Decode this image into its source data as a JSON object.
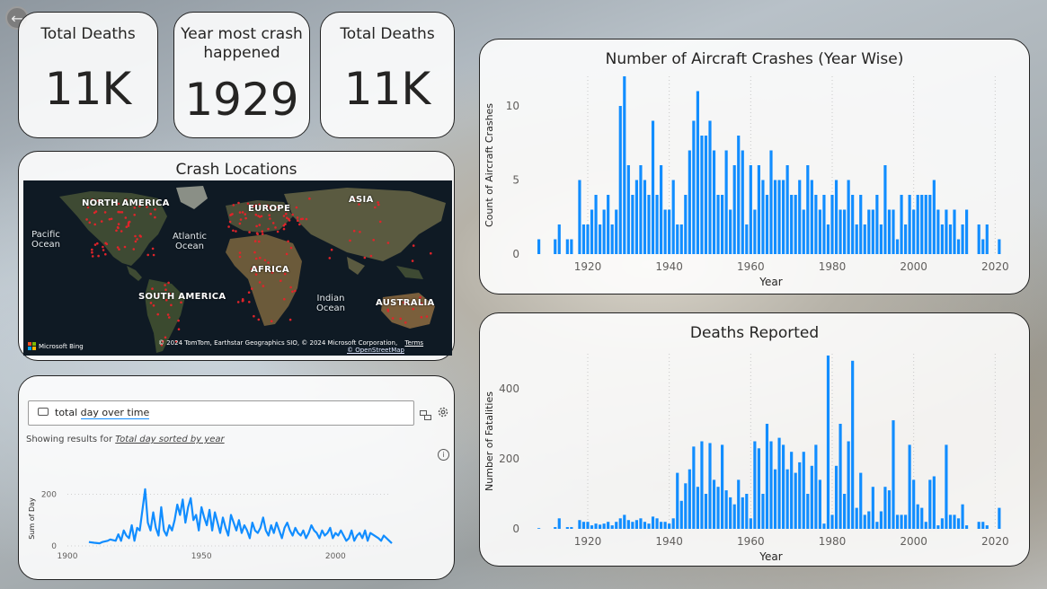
{
  "kpis": [
    {
      "title": "Total Deaths",
      "value": "11K"
    },
    {
      "title": "Year most crash happened",
      "value": "1929"
    },
    {
      "title": "Total Deaths",
      "value": "11K"
    }
  ],
  "map": {
    "title": "Crash Locations",
    "continents": [
      "NORTH AMERICA",
      "EUROPE",
      "ASIA",
      "AFRICA",
      "SOUTH AMERICA",
      "AUSTRALIA"
    ],
    "oceans": [
      "Pacific Ocean",
      "Atlantic Ocean",
      "Indian Ocean"
    ],
    "bing_logo": "Microsoft Bing",
    "attribution": "© 2024 TomTom, Earthstar Geographics SIO, © 2024 Microsoft Corporation,",
    "terms": "Terms",
    "osm": "© OpenStreetMap"
  },
  "qa": {
    "query_prefix": "total ",
    "query_day": "day",
    "query_rest": " over time",
    "results_prefix": "Showing results for ",
    "results_link": "Total day sorted by year",
    "info_icon": "info-icon",
    "swap_icon": "swap-icon",
    "settings_icon": "gear-icon"
  },
  "colors": {
    "bar": "#118DFF",
    "line": "#118DFF",
    "card_border": "#222222"
  },
  "chart_data": [
    {
      "type": "bar",
      "title": "Number of Aircraft Crashes (Year Wise)",
      "xlabel": "Year",
      "ylabel": "Count of Aircraft Crashes",
      "xticks": [
        1920,
        1940,
        1960,
        1980,
        2000,
        2020
      ],
      "yticks": [
        0,
        5,
        10
      ],
      "ylim": [
        0,
        12
      ],
      "grid": "vertical dotted",
      "x": [
        1908,
        1912,
        1913,
        1915,
        1916,
        1918,
        1919,
        1920,
        1921,
        1922,
        1923,
        1924,
        1925,
        1926,
        1927,
        1928,
        1929,
        1930,
        1931,
        1932,
        1933,
        1934,
        1935,
        1936,
        1937,
        1938,
        1939,
        1940,
        1941,
        1942,
        1943,
        1944,
        1945,
        1946,
        1947,
        1948,
        1949,
        1950,
        1951,
        1952,
        1953,
        1954,
        1955,
        1956,
        1957,
        1958,
        1959,
        1960,
        1961,
        1962,
        1963,
        1964,
        1965,
        1966,
        1967,
        1968,
        1969,
        1970,
        1971,
        1972,
        1973,
        1974,
        1975,
        1976,
        1977,
        1978,
        1979,
        1980,
        1981,
        1982,
        1983,
        1984,
        1985,
        1986,
        1987,
        1988,
        1989,
        1990,
        1991,
        1992,
        1993,
        1994,
        1995,
        1996,
        1997,
        1998,
        1999,
        2000,
        2001,
        2002,
        2003,
        2004,
        2005,
        2006,
        2007,
        2008,
        2009,
        2010,
        2011,
        2012,
        2013,
        2016,
        2017,
        2018,
        2021
      ],
      "values": [
        1,
        1,
        2,
        1,
        1,
        5,
        2,
        2,
        3,
        4,
        2,
        3,
        4,
        2,
        3,
        10,
        12,
        6,
        4,
        5,
        6,
        5,
        4,
        9,
        4,
        6,
        3,
        3,
        5,
        2,
        2,
        4,
        7,
        9,
        11,
        8,
        8,
        9,
        7,
        4,
        4,
        7,
        3,
        6,
        8,
        7,
        2,
        6,
        3,
        6,
        5,
        4,
        7,
        5,
        5,
        5,
        6,
        4,
        4,
        5,
        3,
        6,
        5,
        4,
        3,
        4,
        2,
        4,
        5,
        3,
        3,
        5,
        4,
        2,
        4,
        2,
        3,
        3,
        4,
        2,
        6,
        3,
        3,
        1,
        4,
        2,
        4,
        3,
        4,
        4,
        4,
        4,
        5,
        3,
        2,
        3,
        2,
        3,
        1,
        2,
        3,
        2,
        1,
        2,
        1
      ]
    },
    {
      "type": "bar",
      "title": "Deaths Reported",
      "xlabel": "Year",
      "ylabel": "Number of Fatalities",
      "xticks": [
        1920,
        1940,
        1960,
        1980,
        2000,
        2020
      ],
      "yticks": [
        0,
        200,
        400
      ],
      "ylim": [
        0,
        500
      ],
      "grid": "vertical dotted",
      "x": [
        1908,
        1912,
        1913,
        1915,
        1916,
        1918,
        1919,
        1920,
        1921,
        1922,
        1923,
        1924,
        1925,
        1926,
        1927,
        1928,
        1929,
        1930,
        1931,
        1932,
        1933,
        1934,
        1935,
        1936,
        1937,
        1938,
        1939,
        1940,
        1941,
        1942,
        1943,
        1944,
        1945,
        1946,
        1947,
        1948,
        1949,
        1950,
        1951,
        1952,
        1953,
        1954,
        1955,
        1956,
        1957,
        1958,
        1959,
        1960,
        1961,
        1962,
        1963,
        1964,
        1965,
        1966,
        1967,
        1968,
        1969,
        1970,
        1971,
        1972,
        1973,
        1974,
        1975,
        1976,
        1977,
        1978,
        1979,
        1980,
        1981,
        1982,
        1983,
        1984,
        1985,
        1986,
        1987,
        1988,
        1989,
        1990,
        1991,
        1992,
        1993,
        1994,
        1995,
        1996,
        1997,
        1998,
        1999,
        2000,
        2001,
        2002,
        2003,
        2004,
        2005,
        2006,
        2007,
        2008,
        2009,
        2010,
        2011,
        2012,
        2013,
        2016,
        2017,
        2018,
        2021
      ],
      "values": [
        2,
        5,
        30,
        5,
        5,
        25,
        20,
        20,
        10,
        15,
        12,
        15,
        20,
        10,
        20,
        30,
        40,
        25,
        20,
        25,
        30,
        20,
        15,
        35,
        30,
        20,
        20,
        15,
        30,
        160,
        80,
        130,
        170,
        235,
        120,
        250,
        100,
        245,
        140,
        120,
        240,
        110,
        90,
        70,
        140,
        90,
        100,
        30,
        250,
        230,
        100,
        300,
        250,
        170,
        260,
        240,
        170,
        220,
        160,
        190,
        220,
        100,
        180,
        240,
        140,
        15,
        495,
        40,
        180,
        300,
        100,
        250,
        480,
        60,
        160,
        40,
        50,
        120,
        20,
        50,
        120,
        110,
        310,
        40,
        40,
        40,
        240,
        140,
        70,
        60,
        20,
        140,
        150,
        10,
        30,
        240,
        40,
        40,
        30,
        70,
        10,
        20,
        20,
        10,
        60
      ]
    },
    {
      "type": "line",
      "title": "",
      "xlabel": "",
      "ylabel": "Sum of Day",
      "xticks": [
        1900,
        1950,
        2000
      ],
      "yticks": [
        0,
        200
      ],
      "ylim": [
        0,
        240
      ],
      "xlim": [
        1900,
        2020
      ],
      "x": [
        1908,
        1910,
        1912,
        1913,
        1915,
        1916,
        1918,
        1919,
        1920,
        1921,
        1922,
        1923,
        1924,
        1925,
        1926,
        1927,
        1928,
        1929,
        1930,
        1931,
        1932,
        1933,
        1934,
        1935,
        1936,
        1937,
        1938,
        1939,
        1940,
        1941,
        1942,
        1943,
        1944,
        1945,
        1946,
        1947,
        1948,
        1949,
        1950,
        1951,
        1952,
        1953,
        1954,
        1955,
        1956,
        1957,
        1958,
        1959,
        1960,
        1961,
        1962,
        1963,
        1964,
        1965,
        1966,
        1967,
        1968,
        1969,
        1970,
        1971,
        1972,
        1973,
        1974,
        1975,
        1976,
        1977,
        1978,
        1979,
        1980,
        1981,
        1982,
        1983,
        1984,
        1985,
        1986,
        1987,
        1988,
        1989,
        1990,
        1991,
        1992,
        1993,
        1994,
        1995,
        1996,
        1997,
        1998,
        1999,
        2000,
        2001,
        2002,
        2003,
        2004,
        2005,
        2006,
        2007,
        2008,
        2009,
        2010,
        2011,
        2012,
        2013,
        2016,
        2017,
        2018,
        2021
      ],
      "values": [
        15,
        12,
        10,
        15,
        20,
        25,
        20,
        45,
        20,
        60,
        40,
        30,
        80,
        20,
        70,
        60,
        140,
        220,
        90,
        60,
        130,
        70,
        40,
        150,
        60,
        40,
        80,
        60,
        100,
        160,
        120,
        180,
        90,
        150,
        185,
        100,
        120,
        60,
        150,
        110,
        80,
        140,
        60,
        130,
        90,
        50,
        110,
        70,
        40,
        120,
        90,
        60,
        100,
        50,
        80,
        60,
        30,
        90,
        60,
        50,
        70,
        110,
        60,
        40,
        80,
        50,
        90,
        60,
        30,
        70,
        90,
        60,
        40,
        70,
        50,
        40,
        60,
        30,
        50,
        80,
        60,
        50,
        30,
        60,
        40,
        50,
        70,
        30,
        50,
        40,
        60,
        40,
        20,
        30,
        60,
        20,
        40,
        50,
        30,
        60,
        20,
        50,
        30,
        20,
        40,
        10
      ]
    }
  ]
}
